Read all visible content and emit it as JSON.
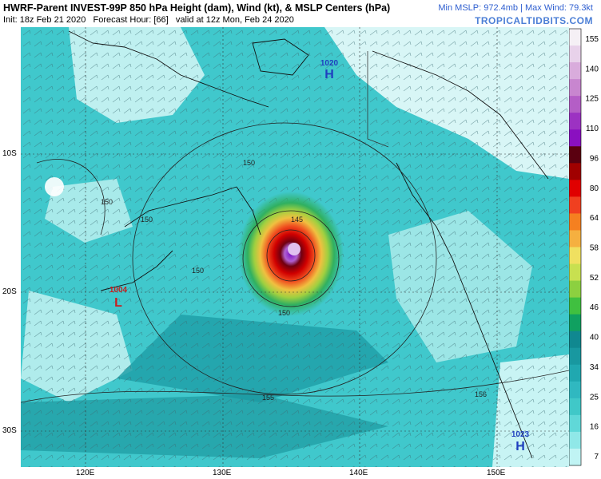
{
  "header": {
    "title": "HWRF-Parent INVEST-99P 850 hPa Height (dam), Wind (kt), & MSLP Centers (hPa)",
    "init": "Init: 18z Feb 21 2020",
    "forecast_hour": "Forecast Hour: [66]",
    "valid": "valid at 12z Mon, Feb 24 2020",
    "min_mslp": "Min MSLP: 972.4mb",
    "max_wind": "Max Wind: 79.3kt",
    "site": "TROPICALTIDBITS.COM"
  },
  "axes": {
    "lat_labels": [
      "10S",
      "20S",
      "30S"
    ],
    "lon_labels": [
      "120E",
      "130E",
      "140E",
      "150E"
    ]
  },
  "pressure_centers": [
    {
      "type": "H",
      "value": "1020",
      "color": "#1f3fbf"
    },
    {
      "type": "L",
      "value": "1004",
      "color": "#c81e1e"
    },
    {
      "type": "H",
      "value": "1023",
      "color": "#1f3fbf"
    }
  ],
  "contours": {
    "labels": [
      "150",
      "150",
      "150",
      "150",
      "150",
      "145",
      "155",
      "156"
    ]
  },
  "colorbar": {
    "ticks": [
      "155",
      "140",
      "125",
      "110",
      "96",
      "80",
      "64",
      "58",
      "52",
      "46",
      "40",
      "34",
      "25",
      "16",
      "7"
    ],
    "colors": [
      "#f5f0f5",
      "#e8d2ea",
      "#d9acdc",
      "#c886cf",
      "#b45ec6",
      "#9c32c2",
      "#8a10c0",
      "#5a0010",
      "#a00000",
      "#e00000",
      "#f04020",
      "#f58020",
      "#f5b040",
      "#f0e060",
      "#c8e050",
      "#8cd040",
      "#40c040",
      "#10a060",
      "#108890",
      "#1898a0",
      "#20a8b0",
      "#30b8c0",
      "#40c8c8",
      "#60d8d8",
      "#90e8e8",
      "#c0f4f4"
    ]
  }
}
